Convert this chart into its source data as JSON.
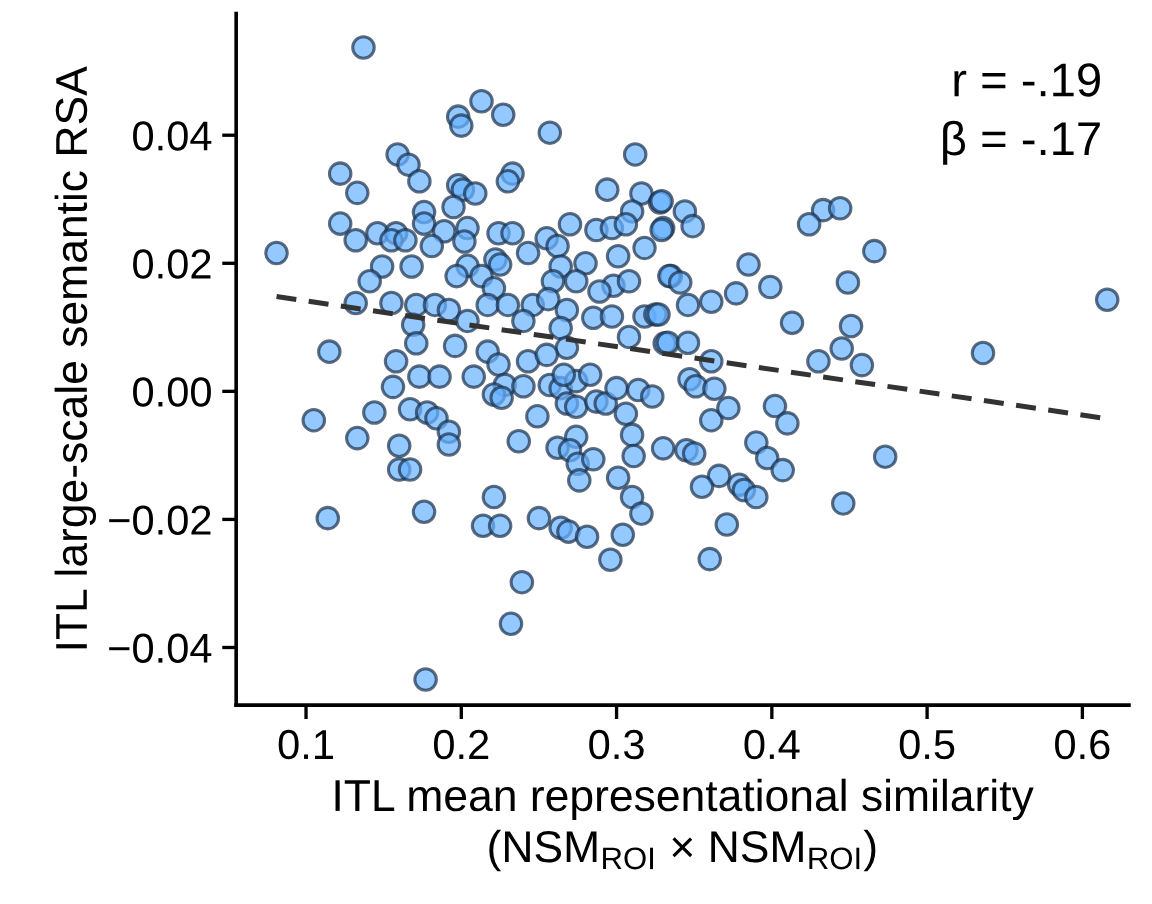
{
  "chart_data": {
    "type": "scatter",
    "xlabel": "ITL mean representational similarity\n(NSM$_{ROI}$ × NSM$_{ROI}$)",
    "ylabel": "ITL large-scale semantic RSA",
    "annotations": [
      "r = -.19",
      "β = -.17"
    ],
    "xlim": [
      0.055,
      0.63
    ],
    "ylim": [
      -0.049,
      0.059
    ],
    "xticks": [
      0.1,
      0.2,
      0.3,
      0.4,
      0.5,
      0.6
    ],
    "yticks": [
      {
        "value": -0.04,
        "label": "−0.04"
      },
      {
        "value": -0.02,
        "label": "−0.02"
      },
      {
        "value": 0,
        "label": "0.00"
      },
      0.02,
      0.04
    ],
    "grid": false,
    "legend": false,
    "marker": "circle",
    "series": [
      {
        "color": "#66b2ff",
        "x": [
          0.137,
          0.213,
          0.227,
          0.198,
          0.2,
          0.257,
          0.312,
          0.159,
          0.166,
          0.122,
          0.233,
          0.23,
          0.173,
          0.198,
          0.201,
          0.209,
          0.133,
          0.294,
          0.316,
          0.328,
          0.195,
          0.31,
          0.176,
          0.122,
          0.176,
          0.27,
          0.287,
          0.297,
          0.306,
          0.33,
          0.146,
          0.158,
          0.204,
          0.224,
          0.233,
          0.189,
          0.132,
          0.155,
          0.164,
          0.202,
          0.255,
          0.262,
          0.181,
          0.318,
          0.081,
          0.243,
          0.301,
          0.222,
          0.28,
          0.149,
          0.168,
          0.204,
          0.225,
          0.264,
          0.197,
          0.213,
          0.141,
          0.259,
          0.274,
          0.298,
          0.308,
          0.289,
          0.221,
          0.335,
          0.132,
          0.155,
          0.171,
          0.183,
          0.192,
          0.217,
          0.23,
          0.246,
          0.256,
          0.268,
          0.285,
          0.297,
          0.318,
          0.325,
          0.169,
          0.204,
          0.24,
          0.264,
          0.308,
          0.331,
          0.115,
          0.171,
          0.196,
          0.217,
          0.268,
          0.158,
          0.243,
          0.329,
          0.344,
          0.349,
          0.329,
          0.433,
          0.444,
          0.424,
          0.466,
          0.385,
          0.399,
          0.377,
          0.361,
          0.449,
          0.334,
          0.341,
          0.346,
          0.327,
          0.413,
          0.451,
          0.616,
          0.445,
          0.536,
          0.333,
          0.346,
          0.361,
          0.43,
          0.458,
          0.347,
          0.351,
          0.363,
          0.361,
          0.372,
          0.402,
          0.41,
          0.33,
          0.345,
          0.35,
          0.39,
          0.397,
          0.407,
          0.473,
          0.366,
          0.355,
          0.379,
          0.382,
          0.39,
          0.446,
          0.371,
          0.36,
          0.173,
          0.186,
          0.156,
          0.208,
          0.224,
          0.228,
          0.221,
          0.226,
          0.24,
          0.255,
          0.257,
          0.264,
          0.274,
          0.283,
          0.266,
          0.268,
          0.274,
          0.287,
          0.293,
          0.3,
          0.314,
          0.323,
          0.306,
          0.105,
          0.144,
          0.167,
          0.178,
          0.184,
          0.192,
          0.192,
          0.133,
          0.16,
          0.16,
          0.167,
          0.249,
          0.237,
          0.274,
          0.262,
          0.27,
          0.275,
          0.276,
          0.285,
          0.31,
          0.311,
          0.301,
          0.31,
          0.316,
          0.221,
          0.114,
          0.176,
          0.214,
          0.225,
          0.25,
          0.264,
          0.269,
          0.281,
          0.304,
          0.296,
          0.239,
          0.232,
          0.177
        ],
        "values": [
          0.0537,
          0.0453,
          0.0432,
          0.0429,
          0.0415,
          0.0404,
          0.037,
          0.037,
          0.0354,
          0.034,
          0.034,
          0.0328,
          0.0328,
          0.0322,
          0.0315,
          0.0309,
          0.031,
          0.0315,
          0.0309,
          0.0295,
          0.0288,
          0.0281,
          0.028,
          0.0262,
          0.0262,
          0.0261,
          0.0252,
          0.0255,
          0.0261,
          0.0255,
          0.0247,
          0.0247,
          0.0255,
          0.0247,
          0.0247,
          0.025,
          0.0236,
          0.0236,
          0.0236,
          0.0234,
          0.0239,
          0.0227,
          0.0227,
          0.0224,
          0.0216,
          0.0216,
          0.0211,
          0.0206,
          0.02,
          0.0195,
          0.0195,
          0.0196,
          0.0198,
          0.0195,
          0.018,
          0.018,
          0.0172,
          0.0172,
          0.0172,
          0.0165,
          0.0172,
          0.0156,
          0.0161,
          0.018,
          0.0138,
          0.0138,
          0.0135,
          0.0135,
          0.0127,
          0.0135,
          0.0135,
          0.0135,
          0.0144,
          0.0127,
          0.0115,
          0.0117,
          0.0117,
          0.012,
          0.0104,
          0.011,
          0.011,
          0.0099,
          0.0085,
          0.0075,
          0.0062,
          0.0075,
          0.0071,
          0.0062,
          0.0068,
          0.0047,
          0.0047,
          0.0297,
          0.0281,
          0.0258,
          0.0252,
          0.0283,
          0.0286,
          0.0261,
          0.0219,
          0.0198,
          0.0163,
          0.0153,
          0.014,
          0.017,
          0.018,
          0.017,
          0.0135,
          0.012,
          0.0107,
          0.0102,
          0.0143,
          0.0067,
          0.006,
          0.0076,
          0.0076,
          0.0047,
          0.0047,
          0.0041,
          0.0019,
          0.0008,
          0.0004,
          -0.0045,
          -0.0026,
          -0.0023,
          -0.005,
          -0.0089,
          -0.0092,
          -0.0097,
          -0.008,
          -0.0104,
          -0.0123,
          -0.0102,
          -0.0132,
          -0.0149,
          -0.0146,
          -0.0154,
          -0.0165,
          -0.0175,
          -0.0208,
          -0.0262,
          0.0023,
          0.0023,
          0.0007,
          0.0023,
          0.0042,
          0.001,
          -0.0005,
          -0.001,
          0.0008,
          0.0057,
          0.001,
          0.0005,
          0.0016,
          0.0026,
          0.0026,
          -0.0019,
          -0.0024,
          -0.0016,
          -0.0019,
          0.0005,
          0.0002,
          -0.0008,
          -0.0035,
          -0.0045,
          -0.0033,
          -0.0028,
          -0.0033,
          -0.0042,
          -0.0063,
          -0.0083,
          -0.0073,
          -0.0085,
          -0.0122,
          -0.0122,
          -0.0039,
          -0.0078,
          -0.0071,
          -0.0088,
          -0.0092,
          -0.0113,
          -0.0139,
          -0.0106,
          -0.0068,
          -0.0101,
          -0.0135,
          -0.0165,
          -0.0191,
          -0.0165,
          -0.0198,
          -0.0188,
          -0.021,
          -0.021,
          -0.0198,
          -0.0213,
          -0.0219,
          -0.0227,
          -0.0224,
          -0.0263,
          -0.0298,
          -0.0363,
          -0.045
        ]
      },
      {
        "type": "line",
        "color": "#333333",
        "line_style": "dashed",
        "marker": "none",
        "x": [
          0.081,
          0.614
        ],
        "values": [
          0.0148,
          -0.0042
        ]
      }
    ]
  }
}
